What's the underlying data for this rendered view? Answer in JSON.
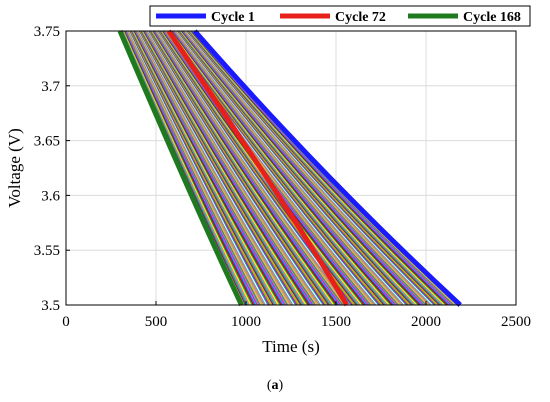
{
  "caption": {
    "open": "(",
    "letter": "a",
    "close": ")"
  },
  "chart_data": {
    "type": "line",
    "xlabel": "Time (s)",
    "ylabel": "Voltage (V)",
    "xlim": [
      0,
      2500
    ],
    "ylim": [
      3.5,
      3.75
    ],
    "xticks": [
      "0",
      "500",
      "1000",
      "1500",
      "2000",
      "2500"
    ],
    "yticks": [
      "3.5",
      "3.55",
      "3.6",
      "3.65",
      "3.7",
      "3.75"
    ],
    "grid": true,
    "legend_position": "top",
    "series": [
      {
        "name": "Cycle 1",
        "color": "#1a1aff",
        "points": [
          [
            715,
            3.75
          ],
          [
            1250,
            3.65
          ],
          [
            1700,
            3.575
          ],
          [
            2190,
            3.5
          ]
        ]
      },
      {
        "name": "Cycle 72",
        "color": "#e8201c",
        "points": [
          [
            570,
            3.75
          ],
          [
            980,
            3.65
          ],
          [
            1290,
            3.575
          ],
          [
            1560,
            3.5
          ]
        ]
      },
      {
        "name": "Cycle 168",
        "color": "#1f7a1f",
        "points": [
          [
            300,
            3.75
          ],
          [
            560,
            3.65
          ],
          [
            760,
            3.575
          ],
          [
            975,
            3.5
          ]
        ]
      }
    ],
    "intermediate_cycle_count": 165
  }
}
